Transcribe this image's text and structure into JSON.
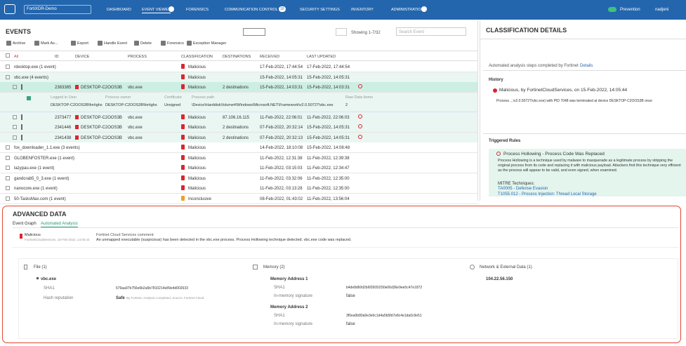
{
  "nav": {
    "brand": "FortiXDR-Demo",
    "items": [
      "DASHBOARD",
      "EVENT VIEWER",
      "FORENSICS",
      "COMMUNICATION CONTROL",
      "SECURITY SETTINGS",
      "INVENTORY",
      "ADMINISTRATION"
    ],
    "comm_badge": "10",
    "mode": "Prevention",
    "user": "nadjeni"
  },
  "events": {
    "title": "EVENTS",
    "toolbar": [
      "Archive",
      "Mark As...",
      "Export",
      "Handle Event",
      "Delete",
      "Forensics",
      "Exception Manager"
    ],
    "showing": "Showing 1-7/32",
    "search": "Search Event",
    "columns": [
      "All",
      "ID",
      "DEVICE",
      "PROCESS",
      "CLASSIFICATION",
      "DESTINATIONS",
      "RECEIVED",
      "LAST UPDATED"
    ],
    "rows": [
      {
        "kind": "group",
        "name": "rdesktop.exe (1 event)",
        "classification": "Malicious",
        "received": "17-Feb-2022, 17:44:54",
        "updated": "17-Feb-2022, 17:44:54"
      },
      {
        "kind": "group",
        "name": "vbc.exe (4 events)",
        "classification": "Malicious",
        "received": "15-Feb-2022, 14:05:31",
        "updated": "15-Feb-2022, 14:05:31"
      },
      {
        "kind": "event",
        "id": "2383385",
        "device": "DESKTOP-C2OOS3B",
        "process": "vbc.exe",
        "classification": "Malicious",
        "destinations": "2 destinations",
        "received": "15-Feb-2022, 14:03:31",
        "updated": "15-Feb-2022, 14:03:31"
      },
      {
        "kind": "detail",
        "labels": [
          "Logged in User",
          "Process owner",
          "Certificate",
          "Process path",
          "Raw Data Items"
        ],
        "values": [
          "DESKTOP-C2OOS3B\\fortighs",
          "DESKTOP-C2OOS3B\\fortighs",
          "Unsigned",
          "\\Device\\HarddiskVolume4\\Windows\\Microsoft.NET\\Framework\\v2.0.50727\\vbc.exe",
          "2"
        ]
      },
      {
        "kind": "event",
        "id": "2373477",
        "device": "DESKTOP-C2OOS3B",
        "process": "vbc.exe",
        "classification": "Malicious",
        "destinations": "87.106.16.115",
        "received": "11-Feb-2022, 22:06:01",
        "updated": "11-Feb-2022, 22:06:03"
      },
      {
        "kind": "event",
        "id": "2341446",
        "device": "DESKTOP-C2OOS3B",
        "process": "vbc.exe",
        "classification": "Malicious",
        "destinations": "2 destinations",
        "received": "07-Feb-2022, 20:32:14",
        "updated": "15-Feb-2022, 14:05:31"
      },
      {
        "kind": "event",
        "id": "2341438",
        "device": "DESKTOP-C2OOS3B",
        "process": "vbc.exe",
        "classification": "Malicious",
        "destinations": "2 destinations",
        "received": "07-Feb-2022, 20:32:13",
        "updated": "15-Feb-2022, 14:05:31"
      },
      {
        "kind": "group",
        "name": "fox_downloader_1.1.exe (3 events)",
        "classification": "Malicious",
        "received": "14-Feb-2022, 18:10:08",
        "updated": "15-Feb-2022, 14:08:48"
      },
      {
        "kind": "group",
        "name": "GLOBENFOSTER.exe (1 event)",
        "classification": "Malicious",
        "received": "11-Feb-2022, 12:31:38",
        "updated": "11-Feb-2022, 12:39:38"
      },
      {
        "kind": "group",
        "name": "lazypau.exe (1 event)",
        "classification": "Malicious",
        "received": "11-Feb-2022, 03:15:03",
        "updated": "11-Feb-2022, 12:34:47"
      },
      {
        "kind": "group",
        "name": "gandcrab5_0_3.exe (1 event)",
        "classification": "Malicious",
        "received": "11-Feb-2022, 03:32:06",
        "updated": "11-Feb-2022, 12:35:00"
      },
      {
        "kind": "group",
        "name": "nanocore.exe (1 event)",
        "classification": "Malicious",
        "received": "11-Feb-2022, 03:13:28",
        "updated": "11-Feb-2022, 12:35:00"
      },
      {
        "kind": "group",
        "name": "50-TasksMax.com (1 event)",
        "classification": "Inconclusive",
        "received": "08-Feb-2022, 01:43:02",
        "updated": "11-Feb-2022, 13:56:04"
      }
    ]
  },
  "classification": {
    "title": "CLASSIFICATION DETAILS",
    "automated": "Automated analysis steps completed by Fortinet",
    "details_link": "Details",
    "history_title": "History",
    "history_entry": "Malicious, by FortinetCloudServices, on 15-Feb-2022, 14:05:44",
    "history_detail": "Process ...\\v2.0.50727\\vbc.exe) with PID 7048 was terminated at device DESKTOP-C2OOS3B once",
    "rules_title": "Triggered Rules",
    "rule_name": "Process Hollowing - Process Code Was Replaced",
    "rule_desc": "Process Hollowing is a technique used by malware to masquerade as a legitimate process by stripping the original process from its code and replacing it with malicious payload. Attackers find this technique very efficient as the process will appear to be valid, and even signed, when examined.",
    "mitre_title": "MITRE Techniques:",
    "mitre": [
      "TA0005 - Defense Evasion",
      "T1055.012 - Process Injection: Thread Local Storage"
    ]
  },
  "advanced": {
    "title": "ADVANCED DATA",
    "tabs": [
      "Event Graph",
      "Automated Analysis"
    ],
    "verdict": "Malicious",
    "verdict_by": "FortinetCloudServices, 15-Feb-2022, 14:05:44",
    "comment_title": "Fortinet Cloud Services comment:",
    "comment": "An unmapped executable (suspicious) has been detected in the vbc.exe process. Process Hollowing technique detected. vbc.exe code was replaced.",
    "file": {
      "title": "File (1)",
      "name": "vbc.exe",
      "sha1_label": "SHA1",
      "sha1": "679aa97b756e6b2a5b7810214e89e4d002633",
      "rep_label": "Hash reputation",
      "rep": "Safe",
      "rep_note": "By Fortinet, Analysis completed, Source: Fortinet Cloud"
    },
    "memory": {
      "title": "Memory (2)",
      "addresses": [
        {
          "name": "Memory Address 1",
          "sha1_label": "SHA1",
          "sha1": "b4de8d60d2b6f26091f30e06d36e9ee5c47e1872",
          "sig_label": "In-memory signature",
          "sig": "false"
        },
        {
          "name": "Memory Address 2",
          "sha1_label": "SHA1",
          "sha1": "3f0ea0b80a9e3e6c1d4a5b5fd7e8c4e1da0c9e51",
          "sig_label": "In-memory signature",
          "sig": "false"
        }
      ]
    },
    "network": {
      "title": "Network & External Data (1)",
      "ip": "104.22.56.150"
    }
  }
}
